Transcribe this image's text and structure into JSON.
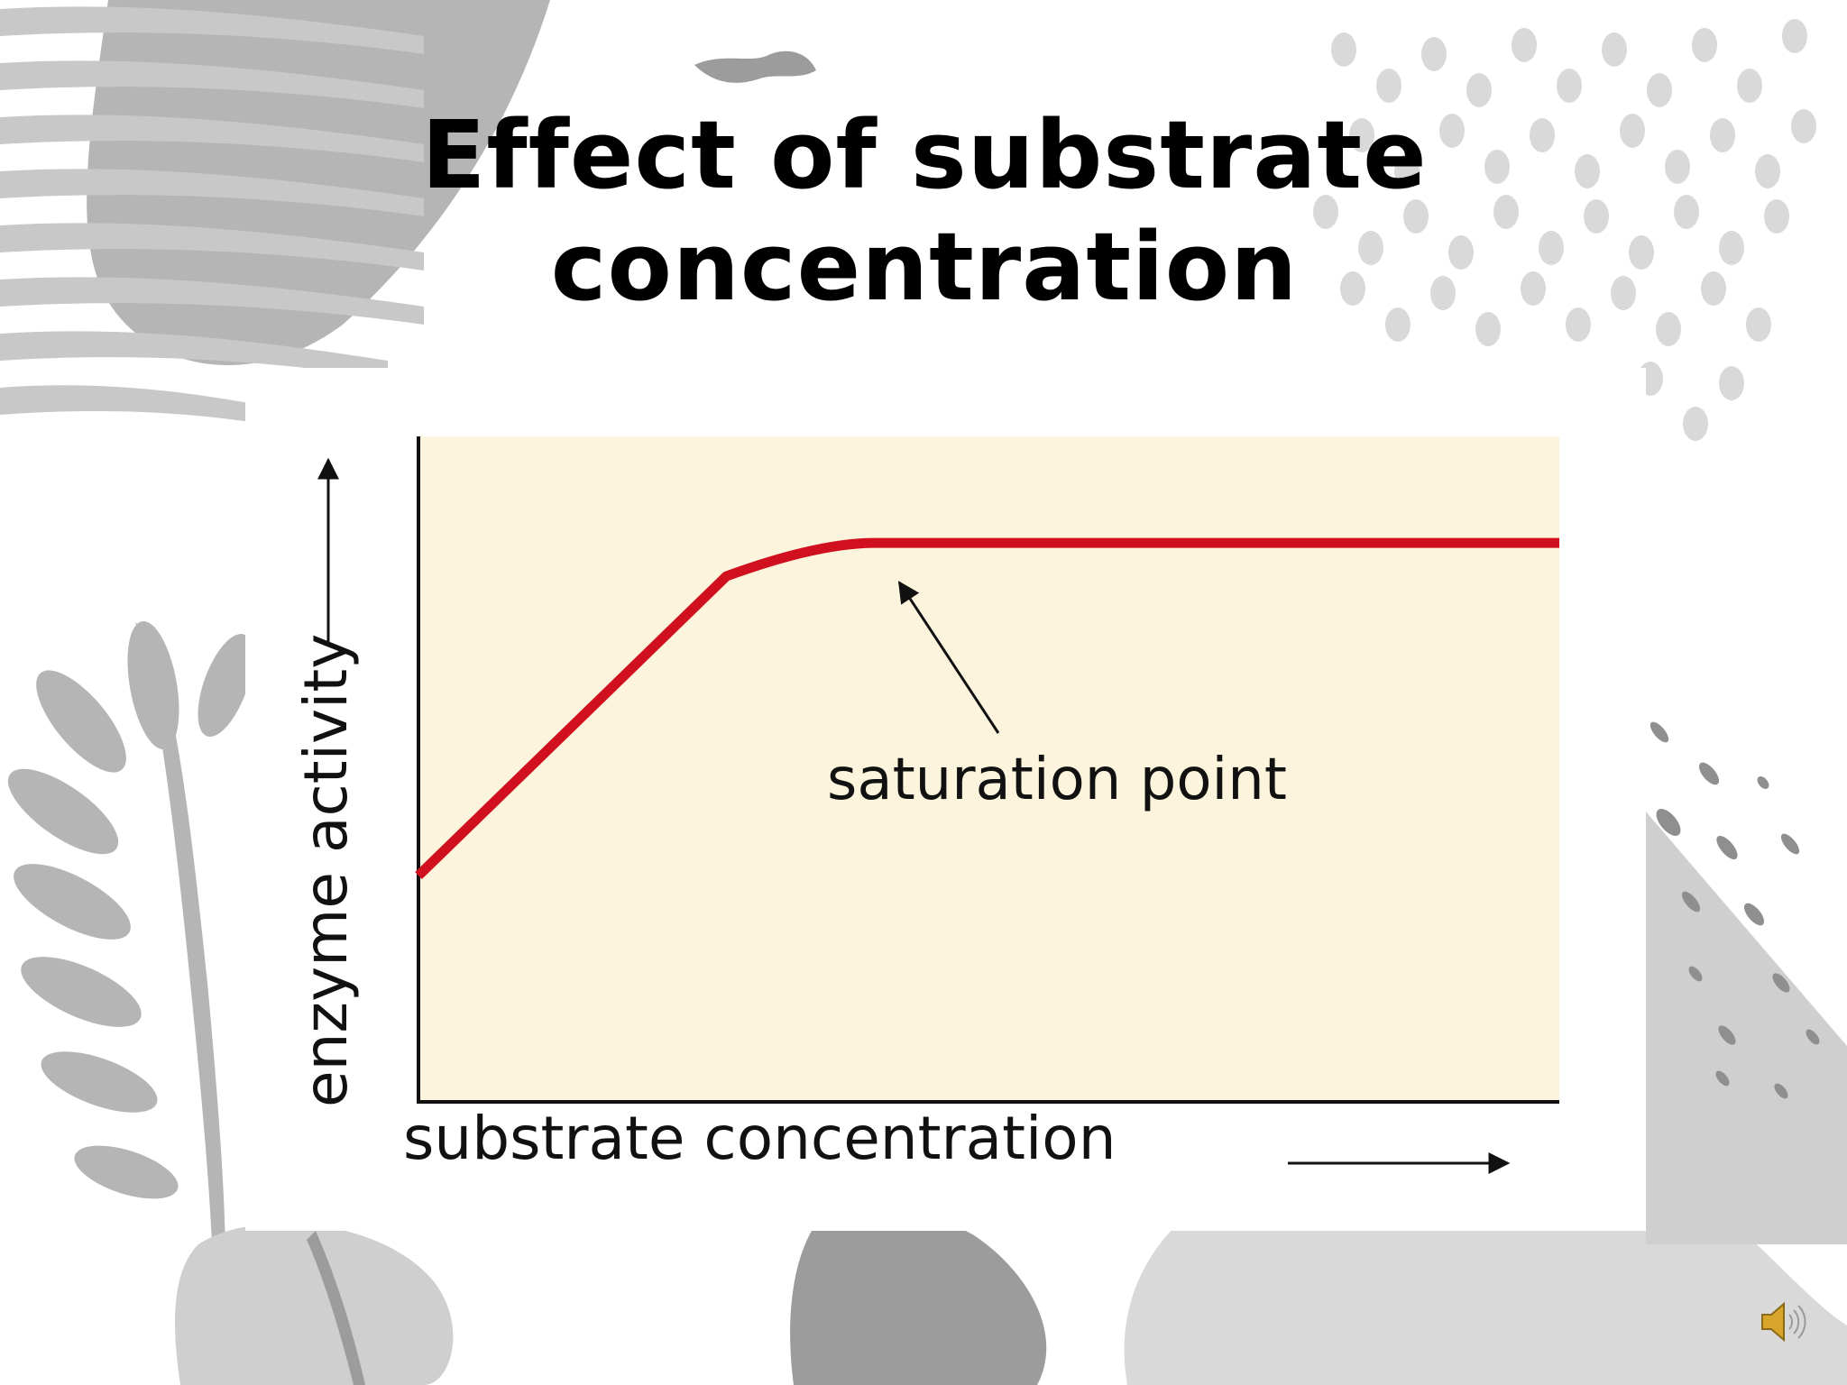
{
  "slide": {
    "title_lines": [
      "Effect of substrate",
      "concentration"
    ]
  },
  "chart_data": {
    "type": "line",
    "xlabel": "substrate concentration",
    "ylabel": "enzyme activity",
    "x_ticks": [],
    "y_ticks": [],
    "plot_background": "#fcf4dc",
    "series": [
      {
        "color": "#d0101e",
        "points": [
          [
            0,
            0.34
          ],
          [
            0.27,
            0.79
          ],
          [
            0.35,
            0.84
          ],
          [
            0.4,
            0.84
          ],
          [
            1.0,
            0.84
          ]
        ]
      }
    ],
    "annotations": [
      {
        "text": "saturation point",
        "points_to": [
          0.42,
          0.84
        ]
      }
    ],
    "xlim": [
      0,
      1
    ],
    "ylim": [
      0,
      1
    ],
    "grid": false,
    "legend": "none"
  },
  "colors": {
    "decor_dark": "#9c9c9c",
    "decor_mid": "#b5b5b5",
    "decor_light": "#d9d9d9",
    "speaker": "#d8a62a"
  },
  "icons": {
    "audio": "speaker-icon"
  }
}
